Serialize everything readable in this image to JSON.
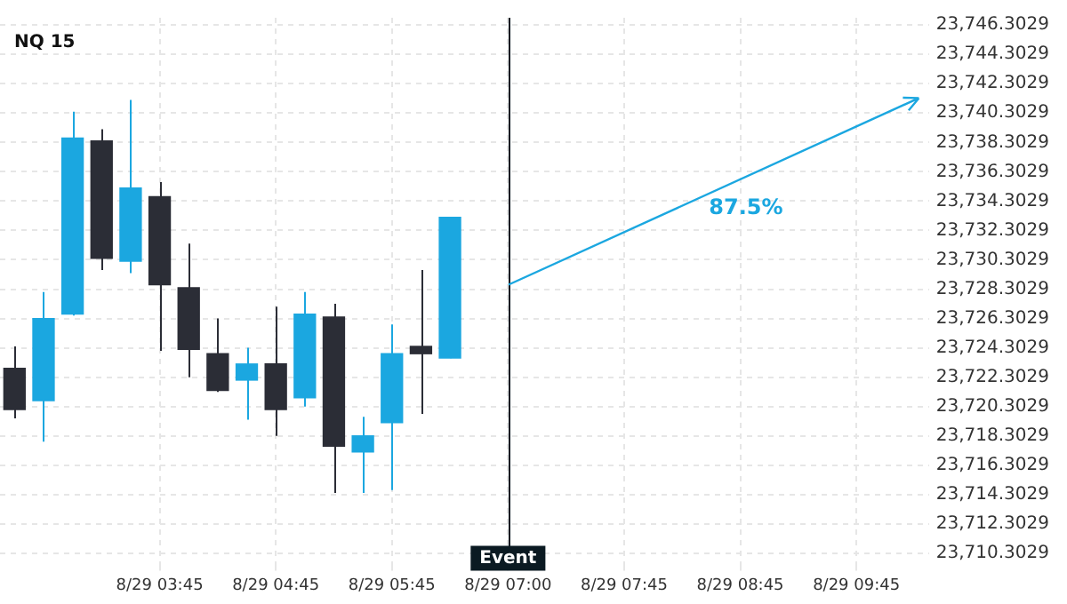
{
  "chart_data": {
    "type": "candlestick",
    "title": "NQ 15",
    "categories": [
      null,
      null,
      null,
      null,
      null,
      "8/29 03:45",
      null,
      null,
      null,
      "8/29 04:45",
      null,
      null,
      null,
      "8/29 05:45",
      null,
      null,
      null,
      "8/29 07:00",
      null,
      null,
      null,
      "8/29 07:45",
      null,
      null,
      null,
      "8/29 08:45",
      null,
      null,
      null,
      "8/29 09:45",
      null,
      null
    ],
    "ohlc": [
      [
        23722.9,
        23724.4,
        23719.5,
        23720.1
      ],
      [
        23720.7,
        23728.1,
        23717.9,
        23726.3
      ],
      [
        23726.6,
        23740.4,
        23726.5,
        23738.6
      ],
      [
        23738.4,
        23739.2,
        23729.6,
        23730.4
      ],
      [
        23730.2,
        23741.2,
        23729.4,
        23735.2
      ],
      [
        23734.6,
        23735.6,
        23724.1,
        23728.6
      ],
      [
        23728.4,
        23731.4,
        23722.3,
        23724.2
      ],
      [
        23723.9,
        23726.3,
        23721.3,
        23721.4
      ],
      [
        23722.1,
        23724.3,
        23719.4,
        23723.2
      ],
      [
        23723.2,
        23727.1,
        23718.3,
        23720.1
      ],
      [
        23720.9,
        23728.1,
        23720.3,
        23726.6
      ],
      [
        23726.4,
        23727.3,
        23714.4,
        23717.6
      ],
      [
        23717.2,
        23719.6,
        23714.4,
        23718.3
      ],
      [
        23719.2,
        23725.9,
        23714.6,
        23723.9
      ],
      [
        23724.4,
        23729.6,
        23719.8,
        23723.9
      ],
      [
        23723.6,
        23733.2,
        23723.6,
        23733.2
      ],
      null,
      null,
      null,
      null,
      null,
      null,
      null,
      null,
      null,
      null,
      null,
      null,
      null,
      null,
      null,
      null
    ],
    "colors": [
      "#2b2d36",
      "#1ba7e0",
      "#1ba7e0",
      "#2b2d36",
      "#1ba7e0",
      "#2b2d36",
      "#2b2d36",
      "#2b2d36",
      "#1ba7e0",
      "#2b2d36",
      "#1ba7e0",
      "#2b2d36",
      "#1ba7e0",
      "#1ba7e0",
      "#2b2d36",
      "#1ba7e0",
      null,
      null,
      null,
      null,
      null,
      null,
      null,
      null,
      null,
      null,
      null,
      null,
      null,
      null,
      null,
      null
    ],
    "annotations": [
      "87.5%"
    ],
    "ref_lines": [
      {
        "axis": "x",
        "value": "8/29 07:00",
        "label": "Event",
        "color": "#0b1a22"
      }
    ],
    "ylim": [
      23709.6,
      23746.8
    ],
    "yticks": [
      {
        "value": 23710.3029,
        "label": "23,710.3029"
      },
      {
        "value": 23712.3029,
        "label": "23,712.3029"
      },
      {
        "value": 23714.3029,
        "label": "23,714.3029"
      },
      {
        "value": 23716.3029,
        "label": "23,716.3029"
      },
      {
        "value": 23718.3029,
        "label": "23,718.3029"
      },
      {
        "value": 23720.3029,
        "label": "23,720.3029"
      },
      {
        "value": 23722.3029,
        "label": "23,722.3029"
      },
      {
        "value": 23724.3029,
        "label": "23,724.3029"
      },
      {
        "value": 23726.3029,
        "label": "23,726.3029"
      },
      {
        "value": 23728.3029,
        "label": "23,728.3029"
      },
      {
        "value": 23730.3029,
        "label": "23,730.3029"
      },
      {
        "value": 23732.3029,
        "label": "23,732.3029"
      },
      {
        "value": 23734.3029,
        "label": "23,734.3029"
      },
      {
        "value": 23736.3029,
        "label": "23,736.3029"
      },
      {
        "value": 23738.3029,
        "label": "23,738.3029"
      },
      {
        "value": 23740.3029,
        "label": "23,740.3029"
      },
      {
        "value": 23742.3029,
        "label": "23,742.3029"
      },
      {
        "value": 23744.3029,
        "label": "23,744.3029"
      },
      {
        "value": 23746.3029,
        "label": "23,746.3029"
      }
    ],
    "grid": true,
    "legend": false
  }
}
